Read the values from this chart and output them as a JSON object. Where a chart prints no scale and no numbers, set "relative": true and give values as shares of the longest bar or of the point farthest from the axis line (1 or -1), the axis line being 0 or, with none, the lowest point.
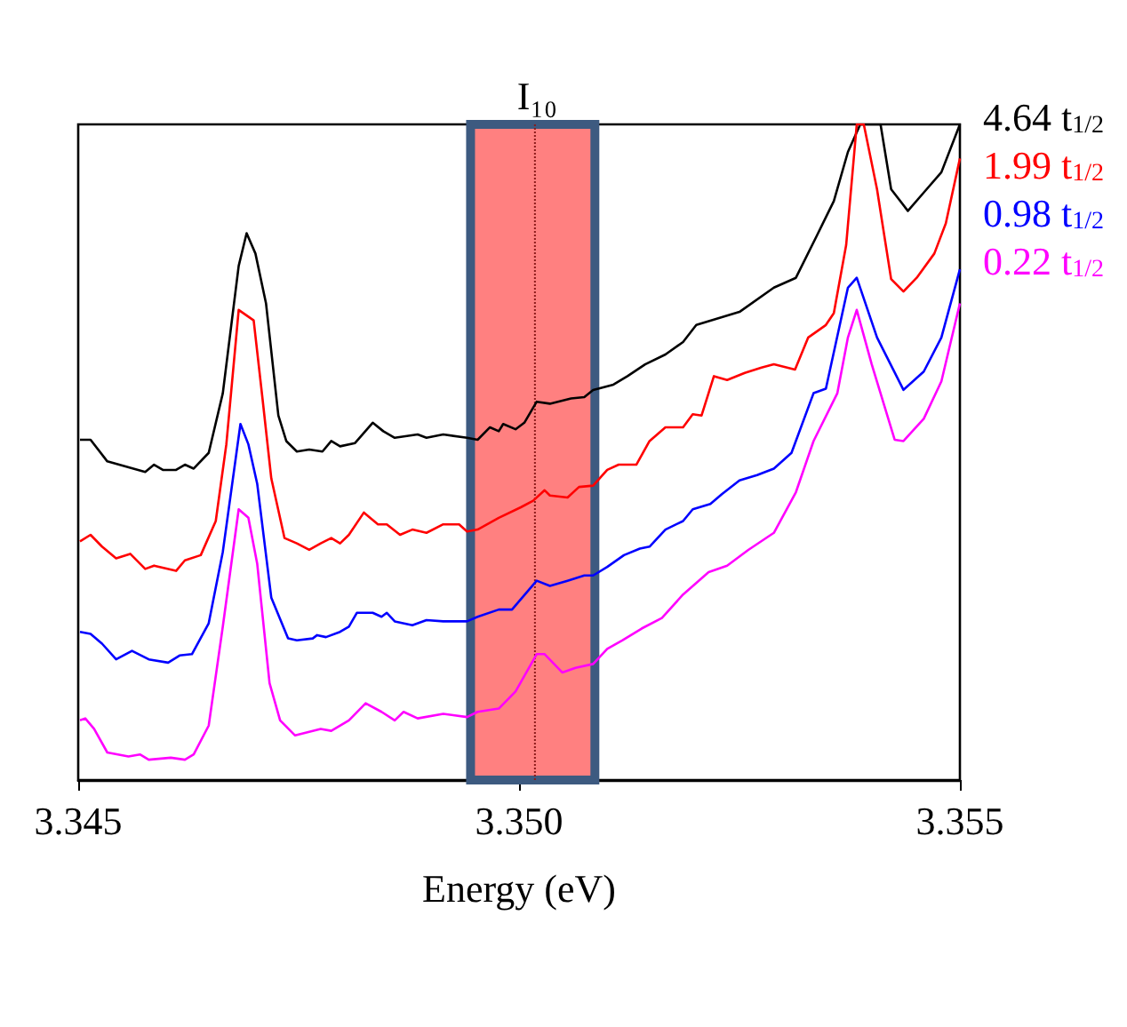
{
  "chart_data": {
    "type": "line",
    "xlabel": "Energy (eV)",
    "relative": true,
    "legend": "right",
    "grid": false,
    "marker": "none",
    "xlim": [
      3.345,
      3.355
    ],
    "xticks": [
      {
        "value": 3.345,
        "label": "3.345"
      },
      {
        "value": 3.35,
        "label": "3.350"
      },
      {
        "value": 3.355,
        "label": "3.355"
      }
    ],
    "bands": [
      {
        "axis": "x",
        "from": 3.34945,
        "to": 3.35086,
        "color": "#ff8080"
      }
    ],
    "ref_lines": [
      {
        "axis": "x",
        "value": 3.35018,
        "label": "I₁₀",
        "line_style": "dotted",
        "color": "#8b1a1a"
      }
    ],
    "series": [
      {
        "name": "4.64 t$_{1/2}$",
        "color": "#000000",
        "x": [
          3.34502,
          3.34514,
          3.34533,
          3.34576,
          3.34586,
          3.34596,
          3.34611,
          3.34621,
          3.34631,
          3.34648,
          3.34664,
          3.34682,
          3.34691,
          3.34701,
          3.34713,
          3.34727,
          3.34736,
          3.34748,
          3.34762,
          3.34777,
          3.34787,
          3.34797,
          3.34814,
          3.34834,
          3.34846,
          3.34859,
          3.34885,
          3.34895,
          3.34914,
          3.34941,
          3.34953,
          3.34967,
          3.34977,
          3.34982,
          3.34996,
          3.35006,
          3.3502,
          3.35035,
          3.35059,
          3.35074,
          3.35084,
          3.35107,
          3.35123,
          3.35143,
          3.35166,
          3.35186,
          3.35201,
          3.3525,
          3.35289,
          3.35314,
          3.35338,
          3.35357,
          3.35373,
          3.35387,
          3.3541,
          3.35422,
          3.35441,
          3.35459,
          3.35479,
          3.355
        ],
        "values": [
          0.519,
          0.519,
          0.486,
          0.47,
          0.481,
          0.473,
          0.473,
          0.481,
          0.475,
          0.499,
          0.59,
          0.784,
          0.834,
          0.803,
          0.727,
          0.556,
          0.517,
          0.501,
          0.504,
          0.501,
          0.517,
          0.509,
          0.514,
          0.545,
          0.532,
          0.522,
          0.527,
          0.522,
          0.527,
          0.522,
          0.519,
          0.538,
          0.532,
          0.543,
          0.535,
          0.545,
          0.577,
          0.574,
          0.582,
          0.584,
          0.595,
          0.603,
          0.616,
          0.634,
          0.649,
          0.668,
          0.694,
          0.714,
          0.751,
          0.766,
          0.831,
          0.883,
          0.958,
          1.0,
          1.0,
          0.901,
          0.868,
          0.896,
          0.927,
          1.0
        ]
      },
      {
        "name": "1.99 t$_{1/2}$",
        "color": "#ff0000",
        "x": [
          3.34502,
          3.34514,
          3.34527,
          3.34543,
          3.34559,
          3.34576,
          3.34586,
          3.34611,
          3.34621,
          3.34639,
          3.34656,
          3.34668,
          3.34682,
          3.34699,
          3.34709,
          3.34719,
          3.34734,
          3.34748,
          3.34762,
          3.34775,
          3.34787,
          3.34797,
          3.34807,
          3.34824,
          3.3484,
          3.3485,
          3.34865,
          3.34879,
          3.34895,
          3.34914,
          3.34932,
          3.34941,
          3.34953,
          3.34977,
          3.35002,
          3.35016,
          3.35029,
          3.35035,
          3.35055,
          3.35068,
          3.35084,
          3.351,
          3.35113,
          3.35133,
          3.35148,
          3.35166,
          3.35186,
          3.35197,
          3.35207,
          3.35221,
          3.35236,
          3.35256,
          3.35275,
          3.35289,
          3.35313,
          3.35328,
          3.35348,
          3.35357,
          3.35371,
          3.35383,
          3.35391,
          3.35406,
          3.35422,
          3.35436,
          3.35451,
          3.35471,
          3.35484,
          3.355
        ],
        "values": [
          0.364,
          0.374,
          0.356,
          0.338,
          0.345,
          0.322,
          0.327,
          0.319,
          0.335,
          0.343,
          0.395,
          0.512,
          0.717,
          0.701,
          0.582,
          0.46,
          0.369,
          0.361,
          0.351,
          0.361,
          0.369,
          0.361,
          0.374,
          0.408,
          0.39,
          0.39,
          0.374,
          0.382,
          0.377,
          0.39,
          0.39,
          0.379,
          0.382,
          0.4,
          0.416,
          0.426,
          0.442,
          0.434,
          0.431,
          0.447,
          0.449,
          0.473,
          0.481,
          0.481,
          0.517,
          0.538,
          0.538,
          0.558,
          0.556,
          0.616,
          0.61,
          0.621,
          0.629,
          0.634,
          0.626,
          0.675,
          0.694,
          0.712,
          0.816,
          1.0,
          1.0,
          0.901,
          0.764,
          0.745,
          0.766,
          0.803,
          0.849,
          0.948
        ]
      },
      {
        "name": "0.98 t$_{1/2}$",
        "color": "#0000ff",
        "x": [
          3.34502,
          3.34514,
          3.34527,
          3.34543,
          3.34561,
          3.3458,
          3.34602,
          3.34615,
          3.34629,
          3.34648,
          3.34664,
          3.34684,
          3.34693,
          3.34703,
          3.34719,
          3.34738,
          3.34748,
          3.34766,
          3.34771,
          3.34781,
          3.34797,
          3.34807,
          3.34816,
          3.34834,
          3.34844,
          3.3485,
          3.34859,
          3.34879,
          3.34895,
          3.34914,
          3.34941,
          3.34953,
          3.34977,
          3.34992,
          3.3502,
          3.35035,
          3.35055,
          3.35074,
          3.35084,
          3.351,
          3.35119,
          3.35137,
          3.35148,
          3.35166,
          3.35186,
          3.35197,
          3.35217,
          3.3523,
          3.3525,
          3.3527,
          3.35289,
          3.35309,
          3.35334,
          3.35348,
          3.35373,
          3.35383,
          3.35406,
          3.35436,
          3.35459,
          3.35479,
          3.355
        ],
        "values": [
          0.226,
          0.223,
          0.208,
          0.184,
          0.197,
          0.184,
          0.179,
          0.19,
          0.192,
          0.239,
          0.348,
          0.543,
          0.512,
          0.452,
          0.278,
          0.216,
          0.213,
          0.216,
          0.221,
          0.218,
          0.226,
          0.234,
          0.255,
          0.255,
          0.249,
          0.255,
          0.242,
          0.236,
          0.244,
          0.242,
          0.242,
          0.249,
          0.26,
          0.26,
          0.304,
          0.296,
          0.304,
          0.312,
          0.312,
          0.325,
          0.343,
          0.353,
          0.356,
          0.382,
          0.395,
          0.413,
          0.421,
          0.436,
          0.457,
          0.465,
          0.475,
          0.499,
          0.59,
          0.597,
          0.751,
          0.766,
          0.675,
          0.595,
          0.623,
          0.675,
          0.779
        ]
      },
      {
        "name": "0.22 t$_{1/2}$",
        "color": "#ff00ff",
        "x": [
          3.34502,
          3.34508,
          3.34518,
          3.34533,
          3.34557,
          3.3457,
          3.3458,
          3.34605,
          3.34621,
          3.34631,
          3.34648,
          3.34664,
          3.34682,
          3.34693,
          3.34703,
          3.34717,
          3.34729,
          3.34746,
          3.34775,
          3.34787,
          3.34807,
          3.34826,
          3.34844,
          3.34859,
          3.34869,
          3.34885,
          3.34914,
          3.34941,
          3.34953,
          3.34977,
          3.34996,
          3.3502,
          3.35029,
          3.35049,
          3.35064,
          3.35084,
          3.351,
          3.35117,
          3.35139,
          3.35162,
          3.35186,
          3.35215,
          3.35236,
          3.3526,
          3.35289,
          3.35314,
          3.35334,
          3.35361,
          3.35373,
          3.35383,
          3.354,
          3.35426,
          3.35436,
          3.35459,
          3.35479,
          3.355
        ],
        "values": [
          0.091,
          0.094,
          0.078,
          0.042,
          0.036,
          0.039,
          0.031,
          0.034,
          0.031,
          0.039,
          0.083,
          0.234,
          0.413,
          0.4,
          0.33,
          0.148,
          0.091,
          0.068,
          0.078,
          0.075,
          0.091,
          0.117,
          0.104,
          0.091,
          0.104,
          0.094,
          0.101,
          0.096,
          0.104,
          0.109,
          0.135,
          0.192,
          0.192,
          0.164,
          0.171,
          0.177,
          0.2,
          0.213,
          0.231,
          0.247,
          0.283,
          0.317,
          0.327,
          0.351,
          0.377,
          0.439,
          0.517,
          0.59,
          0.675,
          0.717,
          0.634,
          0.519,
          0.517,
          0.551,
          0.608,
          0.727
        ]
      }
    ]
  }
}
